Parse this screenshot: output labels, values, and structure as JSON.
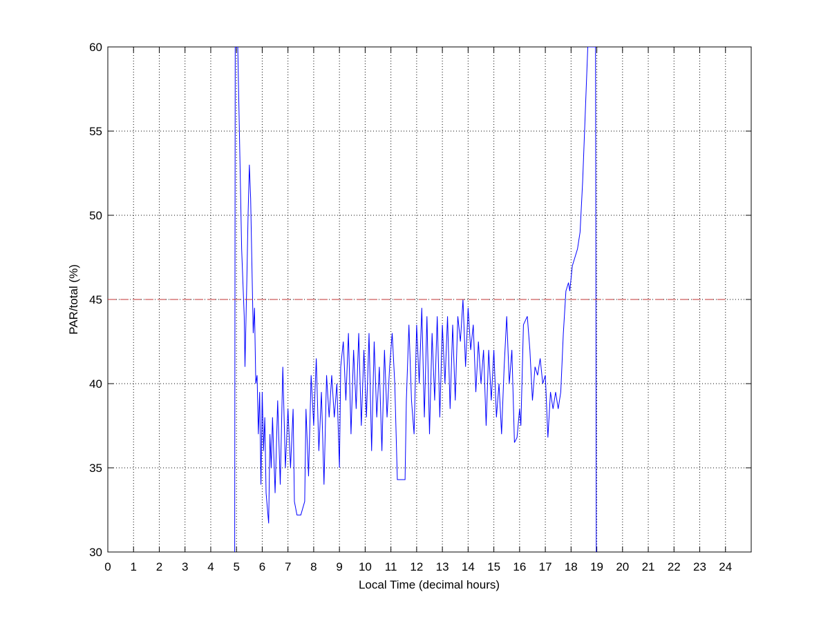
{
  "chart_data": {
    "type": "line",
    "xlabel": "Local Time (decimal hours)",
    "ylabel": "PAR/total (%)",
    "xlim": [
      0,
      25
    ],
    "ylim": [
      30,
      60
    ],
    "xticks": [
      0,
      1,
      2,
      3,
      4,
      5,
      6,
      7,
      8,
      9,
      10,
      11,
      12,
      13,
      14,
      15,
      16,
      17,
      18,
      19,
      20,
      21,
      22,
      23,
      24
    ],
    "yticks": [
      30,
      35,
      40,
      45,
      50,
      55,
      60
    ],
    "grid": true,
    "series": [
      {
        "color": "#0000ff",
        "dash": false,
        "x": [
          4.93,
          4.95,
          5.05,
          5.1,
          5.15,
          5.2,
          5.3,
          5.33,
          5.4,
          5.45,
          5.5,
          5.55,
          5.6,
          5.65,
          5.7,
          5.75,
          5.8,
          5.85,
          5.9,
          5.95,
          6.0,
          6.05,
          6.1,
          6.15,
          6.25,
          6.3,
          6.35,
          6.4,
          6.5,
          6.6,
          6.7,
          6.8,
          6.9,
          7.0,
          7.1,
          7.2,
          7.25,
          7.35,
          7.5,
          7.65,
          7.7,
          7.8,
          7.9,
          8.0,
          8.1,
          8.2,
          8.3,
          8.4,
          8.5,
          8.6,
          8.7,
          8.8,
          8.9,
          9.0,
          9.05,
          9.15,
          9.25,
          9.35,
          9.45,
          9.55,
          9.65,
          9.75,
          9.85,
          9.95,
          10.05,
          10.15,
          10.25,
          10.35,
          10.45,
          10.55,
          10.65,
          10.75,
          10.85,
          10.95,
          11.05,
          11.15,
          11.25,
          11.4,
          11.55,
          11.6,
          11.7,
          11.8,
          11.9,
          12.0,
          12.1,
          12.2,
          12.3,
          12.4,
          12.5,
          12.6,
          12.7,
          12.8,
          12.9,
          13.0,
          13.1,
          13.2,
          13.3,
          13.4,
          13.5,
          13.6,
          13.7,
          13.8,
          13.9,
          14.0,
          14.1,
          14.2,
          14.3,
          14.4,
          14.5,
          14.6,
          14.7,
          14.8,
          14.9,
          15.0,
          15.1,
          15.2,
          15.3,
          15.4,
          15.5,
          15.6,
          15.7,
          15.8,
          15.9,
          16.0,
          16.05,
          16.15,
          16.3,
          16.4,
          16.5,
          16.6,
          16.7,
          16.8,
          16.9,
          17.0,
          17.1,
          17.2,
          17.3,
          17.4,
          17.5,
          17.6,
          17.7,
          17.8,
          17.9,
          17.95,
          18.05,
          18.15,
          18.25,
          18.35,
          18.45,
          18.55,
          18.65,
          18.95,
          18.98
        ],
        "values": [
          30,
          60,
          60,
          56,
          52,
          48,
          44,
          41,
          46,
          50,
          53,
          51,
          47,
          43,
          44.5,
          40,
          40.5,
          37,
          39.5,
          34,
          39.5,
          36,
          38,
          33.5,
          31.7,
          37,
          35,
          38,
          33.5,
          39,
          34,
          41,
          35,
          38.5,
          35,
          38.5,
          33,
          32.2,
          32.2,
          33,
          38.5,
          34.5,
          40.5,
          37.5,
          41.5,
          36,
          39.5,
          34,
          40.5,
          38,
          40.5,
          38,
          40,
          35,
          41,
          42.5,
          39,
          43,
          37,
          42,
          38.5,
          43,
          37.5,
          42,
          38,
          43,
          36,
          42.5,
          38,
          41,
          36,
          42,
          38,
          41,
          43,
          40,
          34.3,
          34.3,
          34.3,
          39,
          43.5,
          39,
          37,
          43.5,
          40,
          44.5,
          38,
          44,
          37,
          43,
          39,
          44,
          38,
          43.5,
          40,
          44,
          38.5,
          43.5,
          39,
          44,
          42.5,
          45,
          41,
          44.5,
          42,
          43.5,
          39.5,
          42.5,
          40,
          42,
          37.5,
          42,
          39,
          42,
          38,
          40,
          37,
          41,
          44,
          40,
          42,
          36.5,
          36.8,
          38.5,
          37.5,
          43.5,
          44,
          42,
          39,
          41,
          40.5,
          41.5,
          40,
          40.5,
          36.8,
          39.5,
          38.5,
          39.5,
          38.5,
          39.5,
          43,
          45.5,
          46,
          45.5,
          47,
          47.5,
          48,
          49,
          52,
          56,
          60,
          60,
          30
        ]
      },
      {
        "color": "#c03030",
        "dash": true,
        "x": [
          0,
          24
        ],
        "values": [
          45,
          45
        ]
      }
    ]
  }
}
